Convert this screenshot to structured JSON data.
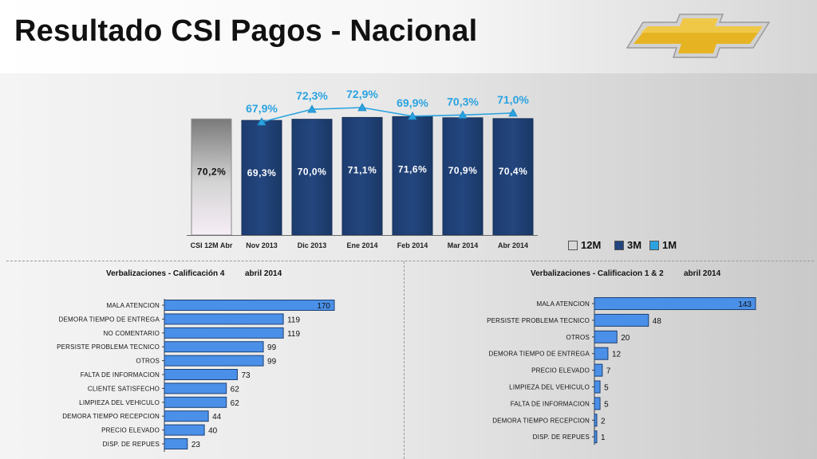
{
  "header": {
    "title": "Resultado CSI Pagos - Nacional"
  },
  "logo": {
    "icon": "chevrolet-bowtie-icon",
    "fill": "#e6b422",
    "border": "#cfcfcf"
  },
  "colors": {
    "bar_dark": "#23467e",
    "bar_mid": "#4a90e8",
    "line": "#2aa3e0",
    "gray_top": "#7a7a7a",
    "gray_bottom": "#f6eef6"
  },
  "chart_data": [
    {
      "type": "bar",
      "title": "",
      "categories": [
        "CSI 12M  Abr",
        "Nov 2013",
        "Dic 2013",
        "Ene 2014",
        "Feb 2014",
        "Mar 2014",
        "Abr 2014"
      ],
      "series": [
        {
          "name": "12M",
          "values": [
            70.2,
            null,
            null,
            null,
            null,
            null,
            null
          ],
          "labels": [
            "70,2%",
            "",
            "",
            "",
            "",
            "",
            ""
          ]
        },
        {
          "name": "3M",
          "values": [
            null,
            69.3,
            70.0,
            71.1,
            71.6,
            70.9,
            70.4
          ],
          "labels": [
            "",
            "69,3%",
            "70,0%",
            "71,1%",
            "71,6%",
            "70,9%",
            "70,4%"
          ]
        },
        {
          "name": "1M",
          "type": "line",
          "values": [
            null,
            67.9,
            72.3,
            72.9,
            69.9,
            70.3,
            71.0
          ],
          "labels": [
            "",
            "67,9%",
            "72,3%",
            "72,9%",
            "69,9%",
            "70,3%",
            "71,0%"
          ]
        }
      ],
      "legend": {
        "position": "bottom-right",
        "items": [
          "12M",
          "3M",
          "1M"
        ]
      }
    },
    {
      "type": "bar",
      "orientation": "horizontal",
      "title": "Verbalizaciones - Calificación 4",
      "subtitle": "abril 2014",
      "categories": [
        "MALA ATENCION",
        "DEMORA TIEMPO DE ENTREGA",
        "NO COMENTARIO",
        "PERSISTE PROBLEMA TECNICO",
        "OTROS",
        "FALTA DE INFORMACION",
        "CLIENTE SATISFECHO",
        "LIMPIEZA DEL VEHICULO",
        "DEMORA TIEMPO RECEPCION",
        "PRECIO ELEVADO",
        "DISP. DE REPUES"
      ],
      "values": [
        170,
        119,
        119,
        99,
        99,
        73,
        62,
        62,
        44,
        40,
        23
      ],
      "xlim": [
        0,
        170
      ]
    },
    {
      "type": "bar",
      "orientation": "horizontal",
      "title": "Verbalizaciones - Calificacion 1 & 2",
      "subtitle": "abril 2014",
      "categories": [
        "MALA ATENCION",
        "PERSISTE PROBLEMA TECNICO",
        "OTROS",
        "DEMORA TIEMPO DE ENTREGA",
        "PRECIO ELEVADO",
        "LIMPIEZA DEL VEHICULO",
        "FALTA DE INFORMACION",
        "DEMORA TIEMPO RECEPCION",
        "DISP. DE REPUES"
      ],
      "values": [
        143,
        48,
        20,
        12,
        7,
        5,
        5,
        2,
        1
      ],
      "xlim": [
        0,
        143
      ]
    }
  ]
}
